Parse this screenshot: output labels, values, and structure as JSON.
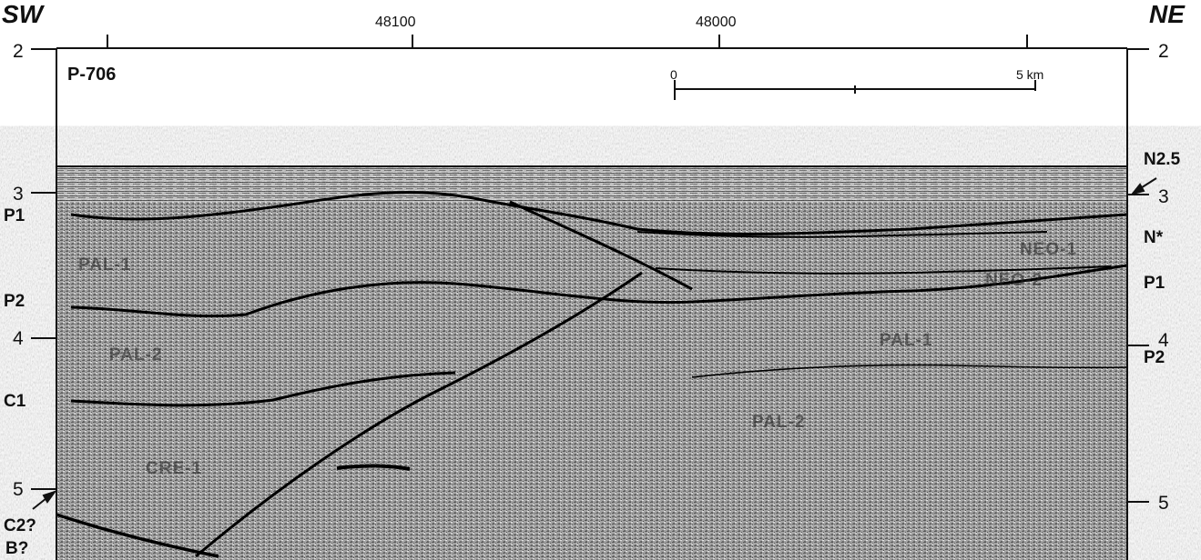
{
  "profile": {
    "line_id": "P-706",
    "direction_left": "SW",
    "direction_right": "NE"
  },
  "top_axis": {
    "labels": [
      "48100",
      "48000"
    ]
  },
  "scale_bar": {
    "start_label": "0",
    "end_label": "5 km"
  },
  "depth_axis": {
    "left": [
      "2",
      "3",
      "4",
      "5"
    ],
    "right": [
      "2",
      "3",
      "4",
      "5"
    ]
  },
  "horizons_left": [
    "P1",
    "P2",
    "C1",
    "C2?",
    "B?"
  ],
  "horizons_right": [
    "N2.5",
    "N*",
    "P1",
    "P2"
  ],
  "unit_labels": [
    "PAL-1",
    "PAL-2",
    "CRE-1",
    "PAL-1",
    "PAL-2",
    "NEO-1",
    "NEO-2"
  ],
  "colors": {
    "ink": "#111111",
    "seismic_bg": "#8a8a8a"
  }
}
